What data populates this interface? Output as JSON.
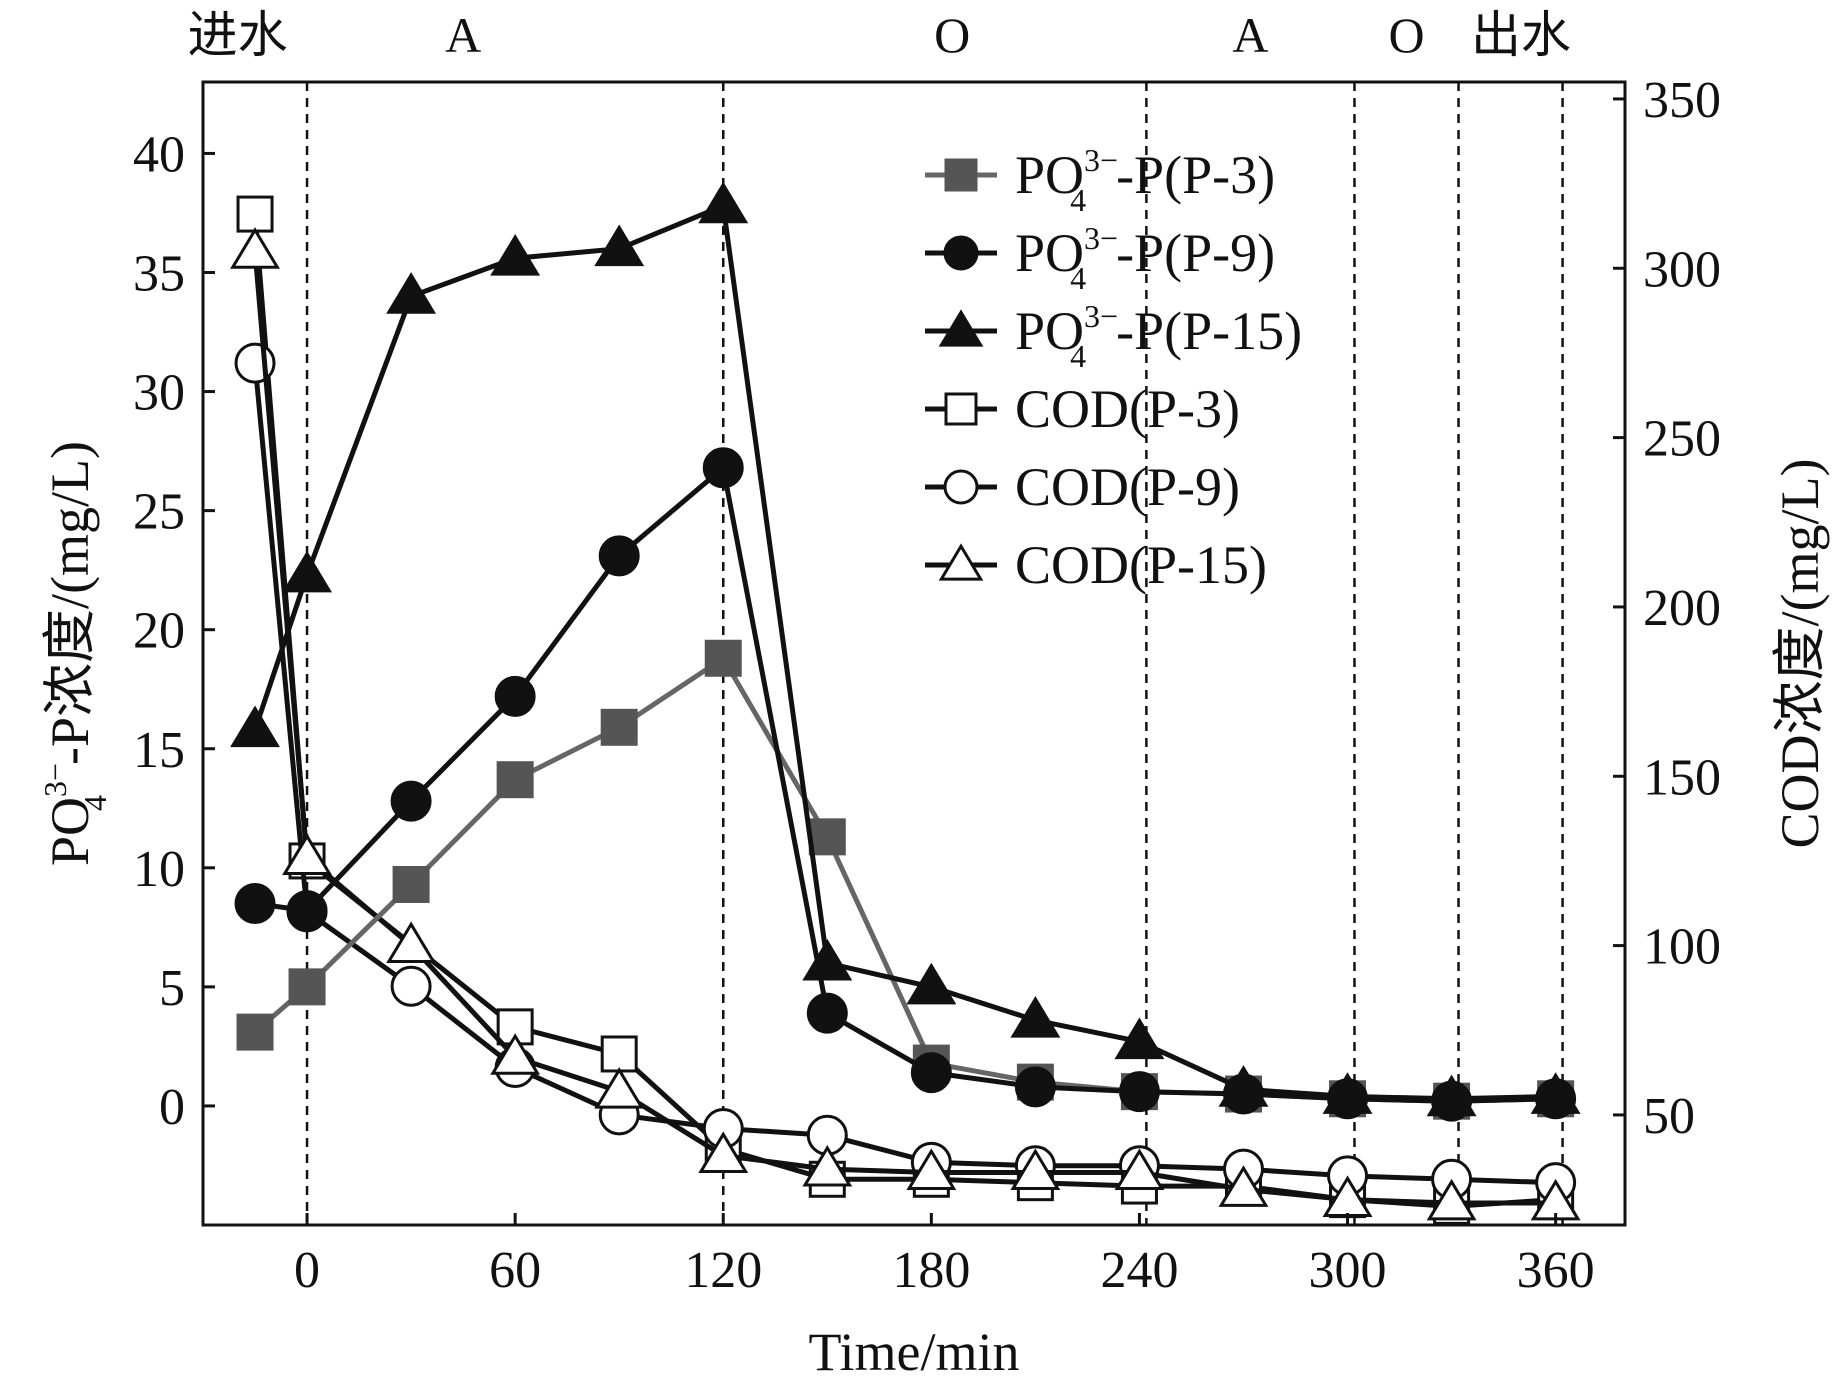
{
  "chart_data": {
    "type": "line",
    "xlabel": "Time/min",
    "ylabel_left": {
      "main": "PO",
      "sub": "4",
      "sup": "3−",
      "rest": "-P浓度/(mg/L)"
    },
    "ylabel_right": "COD浓度/(mg/L)",
    "xlim": [
      -30,
      380
    ],
    "ylim_left": [
      -5,
      43
    ],
    "ylim_right": [
      17.5,
      355
    ],
    "x_ticks": [
      0,
      60,
      120,
      180,
      240,
      300,
      360
    ],
    "y_ticks_left": [
      0,
      5,
      10,
      15,
      20,
      25,
      30,
      35,
      40
    ],
    "y_ticks_right": [
      50,
      100,
      150,
      200,
      250,
      300,
      350
    ],
    "phase_boundaries": [
      0,
      120,
      242,
      302,
      332,
      362
    ],
    "phase_labels": [
      {
        "text": "进水",
        "x": -20
      },
      {
        "text": "A",
        "x": 45
      },
      {
        "text": "O",
        "x": 186
      },
      {
        "text": "A",
        "x": 272
      },
      {
        "text": "O",
        "x": 317
      },
      {
        "text": "出水",
        "x": 350
      }
    ],
    "series": [
      {
        "name": "PO4-P(P-3)",
        "label_main": "PO",
        "label_sub": "4",
        "label_sup": "3−",
        "label_rest": "-P(P-3)",
        "axis": "left",
        "marker": "square",
        "filled": true,
        "color": "#555555",
        "line_color": "#666666",
        "x": [
          -15,
          0,
          30,
          60,
          90,
          120,
          150,
          180,
          210,
          240,
          270,
          300,
          330,
          360
        ],
        "y": [
          3.1,
          5.0,
          9.3,
          13.7,
          15.9,
          18.8,
          11.3,
          1.8,
          1.0,
          0.6,
          0.5,
          0.3,
          0.2,
          0.3
        ]
      },
      {
        "name": "PO4-P(P-9)",
        "label_main": "PO",
        "label_sub": "4",
        "label_sup": "3−",
        "label_rest": "-P(P-9)",
        "axis": "left",
        "marker": "circle",
        "filled": true,
        "color": "#111111",
        "line_color": "#111111",
        "x": [
          -15,
          0,
          30,
          60,
          90,
          120,
          150,
          180,
          210,
          240,
          270,
          300,
          330,
          360
        ],
        "y": [
          8.5,
          8.2,
          12.8,
          17.2,
          23.1,
          26.8,
          3.9,
          1.4,
          0.8,
          0.6,
          0.5,
          0.3,
          0.2,
          0.3
        ]
      },
      {
        "name": "PO4-P(P-15)",
        "label_main": "PO",
        "label_sub": "4",
        "label_sup": "3−",
        "label_rest": "-P(P-15)",
        "axis": "left",
        "marker": "triangle",
        "filled": true,
        "color": "#111111",
        "line_color": "#111111",
        "x": [
          -15,
          0,
          30,
          60,
          90,
          120,
          150,
          180,
          210,
          240,
          270,
          300,
          330,
          360
        ],
        "y": [
          15.8,
          22.3,
          34.0,
          35.6,
          36.0,
          37.8,
          6.0,
          5.0,
          3.6,
          2.7,
          0.7,
          0.4,
          0.3,
          0.4
        ]
      },
      {
        "name": "COD(P-3)",
        "label_main": "COD(P-3)",
        "label_sub": "",
        "label_sup": "",
        "label_rest": "",
        "axis": "right",
        "marker": "square",
        "filled": false,
        "color": "#111111",
        "line_color": "#111111",
        "x": [
          -15,
          0,
          60,
          90,
          120,
          150,
          180,
          210,
          240,
          270,
          300,
          330,
          360
        ],
        "y": [
          316,
          125,
          76,
          68,
          40,
          31,
          31,
          30,
          29,
          29,
          25,
          23,
          25
        ]
      },
      {
        "name": "COD(P-9)",
        "label_main": "COD(P-9)",
        "label_sub": "",
        "label_sup": "",
        "label_rest": "",
        "axis": "right",
        "marker": "circle",
        "filled": false,
        "color": "#111111",
        "line_color": "#111111",
        "x": [
          -15,
          0,
          30,
          60,
          90,
          120,
          150,
          180,
          210,
          240,
          270,
          300,
          330,
          360
        ],
        "y": [
          272,
          110,
          88,
          64,
          50,
          46,
          44,
          36,
          35,
          35,
          34,
          32,
          31,
          30
        ]
      },
      {
        "name": "COD(P-15)",
        "label_main": "COD(P-15)",
        "label_sub": "",
        "label_sup": "",
        "label_rest": "",
        "axis": "right",
        "marker": "triangle",
        "filled": false,
        "color": "#111111",
        "line_color": "#111111",
        "x": [
          -15,
          0,
          30,
          60,
          90,
          120,
          150,
          180,
          210,
          240,
          270,
          300,
          330,
          360
        ],
        "y": [
          305,
          126,
          100,
          67,
          57,
          38,
          34,
          33,
          33,
          33,
          28,
          25,
          24,
          24
        ]
      }
    ]
  }
}
